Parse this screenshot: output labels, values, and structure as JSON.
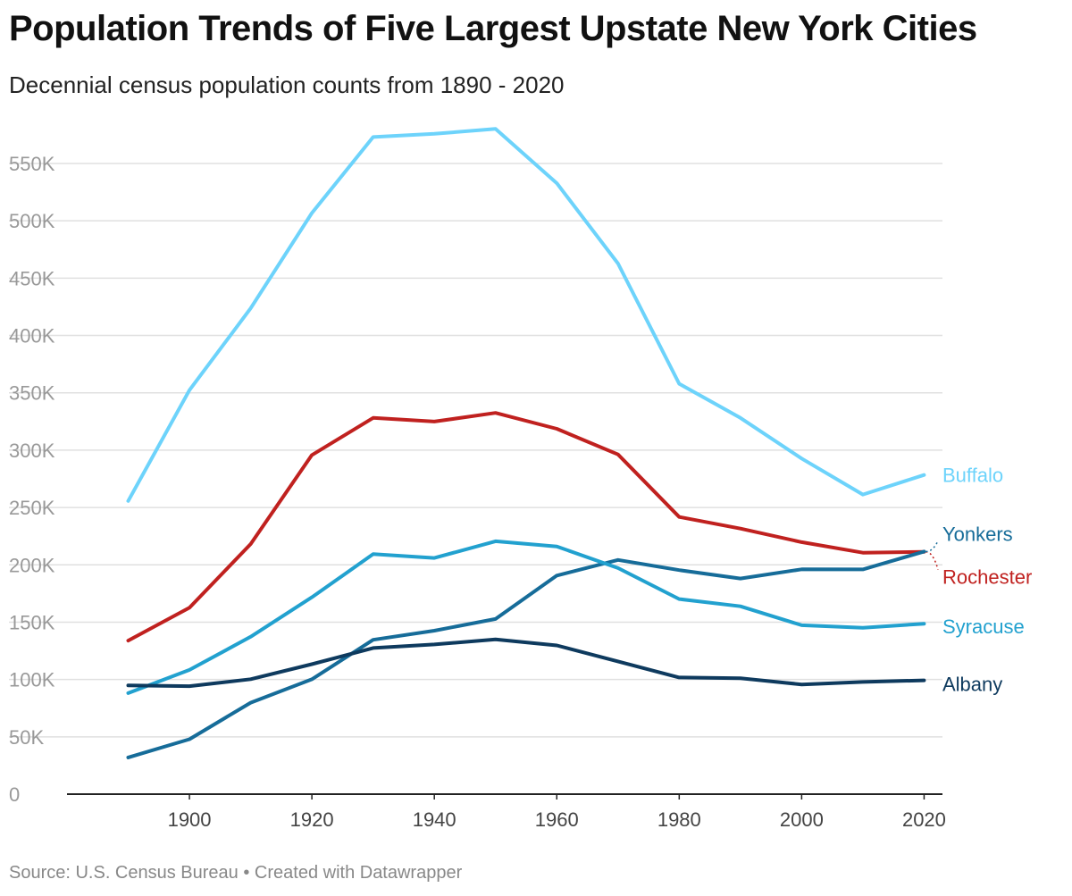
{
  "title": "Population Trends of Five Largest Upstate New York Cities",
  "subtitle": "Decennial census population counts from 1890 - 2020",
  "footer": "Source: U.S. Census Bureau • Created with Datawrapper",
  "chart_data": {
    "type": "line",
    "title": "Population Trends of Five Largest Upstate New York Cities",
    "subtitle": "Decennial census population counts from 1890 - 2020",
    "x": [
      1890,
      1900,
      1910,
      1920,
      1930,
      1940,
      1950,
      1960,
      1970,
      1980,
      1990,
      2000,
      2010,
      2020
    ],
    "xlim": [
      1880,
      2023
    ],
    "ylim": [
      0,
      570000
    ],
    "x_ticks": [
      1900,
      1920,
      1940,
      1960,
      1980,
      2000,
      2020
    ],
    "y_ticks": [
      0,
      50000,
      100000,
      150000,
      200000,
      250000,
      300000,
      350000,
      400000,
      450000,
      500000,
      550000
    ],
    "y_tick_labels": [
      "0",
      "50K",
      "100K",
      "150K",
      "200K",
      "250K",
      "300K",
      "350K",
      "400K",
      "450K",
      "500K",
      "550K"
    ],
    "grid": true,
    "legend": "direct labels at right end of lines",
    "series": [
      {
        "name": "Buffalo",
        "color": "#6dd3fb",
        "values": [
          255664,
          352387,
          423715,
          506775,
          573076,
          575901,
          580132,
          532759,
          462768,
          357870,
          328123,
          292648,
          261310,
          278349
        ]
      },
      {
        "name": "Rochester",
        "color": "#c0211f",
        "values": [
          133896,
          162608,
          218149,
          295750,
          328132,
          324975,
          332488,
          318611,
          296233,
          241741,
          231636,
          219773,
          210565,
          211328
        ]
      },
      {
        "name": "Yonkers",
        "color": "#166c99",
        "values": [
          32033,
          47931,
          79803,
          100176,
          134646,
          142598,
          152798,
          190634,
          204297,
          195351,
          188082,
          196086,
          195976,
          211569
        ]
      },
      {
        "name": "Syracuse",
        "color": "#22a1cf",
        "values": [
          88143,
          108374,
          137249,
          171717,
          209326,
          205967,
          220583,
          216038,
          197208,
          170105,
          163860,
          147306,
          145170,
          148620
        ]
      },
      {
        "name": "Albany",
        "color": "#0e3a5e",
        "values": [
          94923,
          94151,
          100253,
          113344,
          127412,
          130577,
          134995,
          129726,
          115781,
          101727,
          101082,
          95658,
          97856,
          99224
        ]
      }
    ]
  }
}
